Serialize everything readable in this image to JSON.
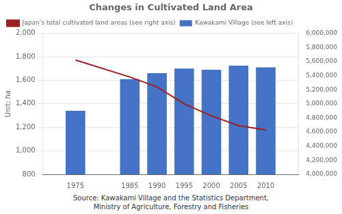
{
  "chart_data": {
    "type": "bar",
    "title": "Changes in Cultivated Land Area",
    "ylabel": "Unit: ha",
    "annotations": [
      "Source: Kawakami Village and the Statistics Department,\nMinistry of Agriculture, Forestry and Fisheries"
    ],
    "x": [
      1975,
      1985,
      1990,
      1995,
      2000,
      2005,
      2010
    ],
    "xlim": [
      1969,
      2016
    ],
    "xticks": [
      1975,
      1985,
      1990,
      1995,
      2000,
      2005,
      2010
    ],
    "series": [
      {
        "name": "Kawakami Village (see left axis)",
        "type": "bar",
        "color": "#4472C4",
        "values": [
          1340,
          1610,
          1660,
          1700,
          1690,
          1725,
          1710
        ]
      },
      {
        "name": "Japan’s total cultivated land areas (see right axis)",
        "type": "line",
        "color": "#9B2020",
        "axis": "y2",
        "values": [
          5620000,
          5380000,
          5240000,
          5000000,
          4830000,
          4690000,
          4630000
        ]
      }
    ],
    "ylim": [
      800,
      2000
    ],
    "yticks": [
      800,
      {
        "value": 1000,
        "label": "1,000"
      },
      {
        "value": 1200,
        "label": "1,200"
      },
      {
        "value": 1400,
        "label": "1,400"
      },
      {
        "value": 1600,
        "label": "1,600"
      },
      {
        "value": 1800,
        "label": "1,800"
      },
      {
        "value": 2000,
        "label": "2,000"
      }
    ],
    "y2lim": [
      4000000,
      6000000
    ],
    "y2ticks": [
      {
        "value": 4000000,
        "label": "4,000,000"
      },
      {
        "value": 4200000,
        "label": "4,200,000"
      },
      {
        "value": 4400000,
        "label": "4,400,000"
      },
      {
        "value": 4600000,
        "label": "4,600,000"
      },
      {
        "value": 4800000,
        "label": "4,800,000"
      },
      {
        "value": 5000000,
        "label": "5,000,000"
      },
      {
        "value": 5200000,
        "label": "5,200,000"
      },
      {
        "value": 5400000,
        "label": "5,400,000"
      },
      {
        "value": 5600000,
        "label": "5,600,000"
      },
      {
        "value": 5800000,
        "label": "5,800,000"
      },
      {
        "value": 6000000,
        "label": "6,000,000"
      }
    ],
    "grid": "y",
    "legend": "upper left"
  }
}
